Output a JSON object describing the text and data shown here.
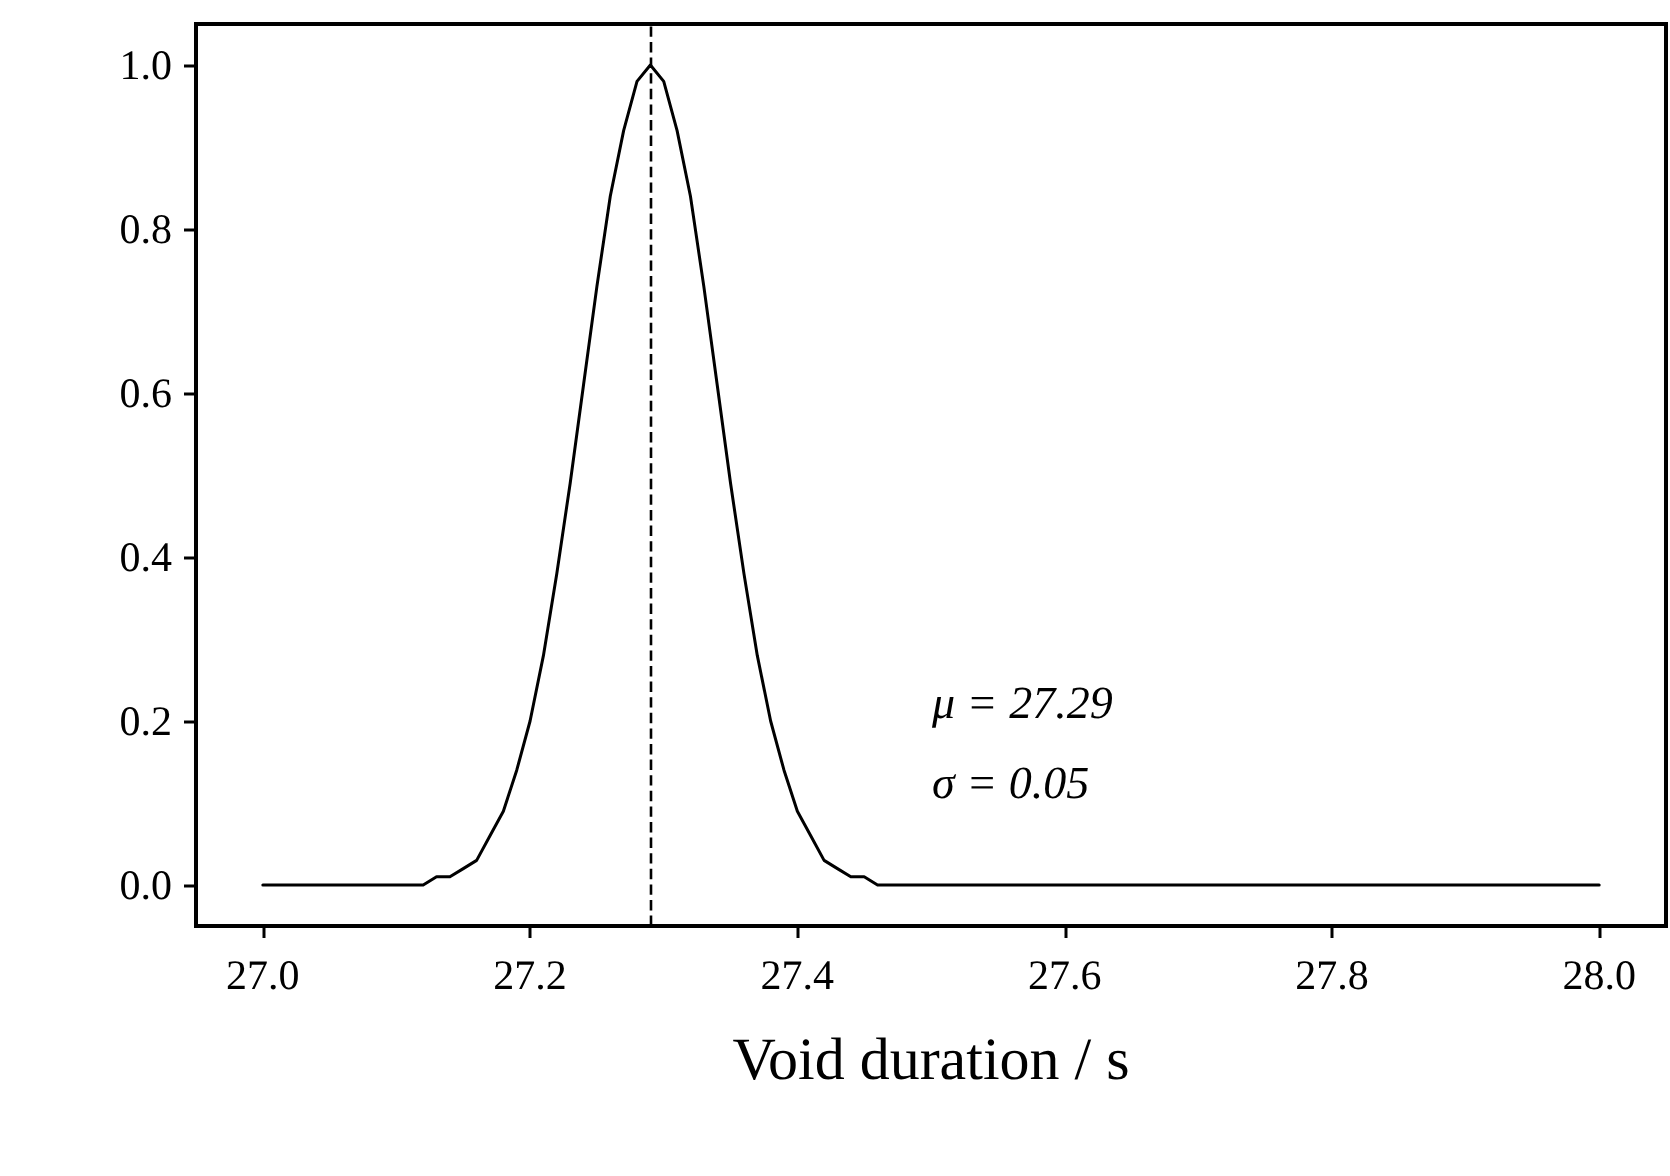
{
  "chart_data": {
    "type": "line",
    "xlabel": "Void duration / s",
    "x": [
      27.0,
      27.1,
      27.12,
      27.13,
      27.14,
      27.15,
      27.16,
      27.17,
      27.18,
      27.19,
      27.2,
      27.21,
      27.22,
      27.23,
      27.24,
      27.25,
      27.26,
      27.27,
      27.28,
      27.29,
      27.3,
      27.31,
      27.32,
      27.33,
      27.34,
      27.35,
      27.36,
      27.37,
      27.38,
      27.39,
      27.4,
      27.41,
      27.42,
      27.43,
      27.44,
      27.45,
      27.46,
      27.5,
      27.6,
      27.8,
      28.0
    ],
    "series": [
      {
        "color": "#000000",
        "values": [
          0,
          0,
          0,
          0.01,
          0.01,
          0.02,
          0.03,
          0.06,
          0.09,
          0.14,
          0.2,
          0.28,
          0.38,
          0.49,
          0.61,
          0.73,
          0.84,
          0.92,
          0.98,
          1.0,
          0.98,
          0.92,
          0.84,
          0.73,
          0.61,
          0.49,
          0.38,
          0.28,
          0.2,
          0.14,
          0.09,
          0.06,
          0.03,
          0.02,
          0.01,
          0.01,
          0,
          0,
          0,
          0,
          0
        ]
      }
    ],
    "xlim": [
      26.95,
      28.05
    ],
    "ylim": [
      -0.05,
      1.05
    ],
    "xticks": [
      {
        "value": 27.0,
        "label": "27.0"
      },
      {
        "value": 27.2,
        "label": "27.2"
      },
      {
        "value": 27.4,
        "label": "27.4"
      },
      {
        "value": 27.6,
        "label": "27.6"
      },
      {
        "value": 27.8,
        "label": "27.8"
      },
      {
        "value": 28.0,
        "label": "28.0"
      }
    ],
    "yticks": [
      {
        "value": 0,
        "label": "0.0"
      },
      {
        "value": 0.2,
        "label": "0.2"
      },
      {
        "value": 0.4,
        "label": "0.4"
      },
      {
        "value": 0.6,
        "label": "0.6"
      },
      {
        "value": 0.8,
        "label": "0.8"
      },
      {
        "value": 1.0,
        "label": "1.0"
      }
    ],
    "ref_lines": [
      {
        "axis": "x",
        "value": 27.29,
        "color": "#000000",
        "line_style": "dashed"
      }
    ],
    "annotations": [
      "μ = 27.29",
      "σ = 0.05"
    ],
    "grid": false,
    "marker": "none",
    "line_style": "solid"
  }
}
